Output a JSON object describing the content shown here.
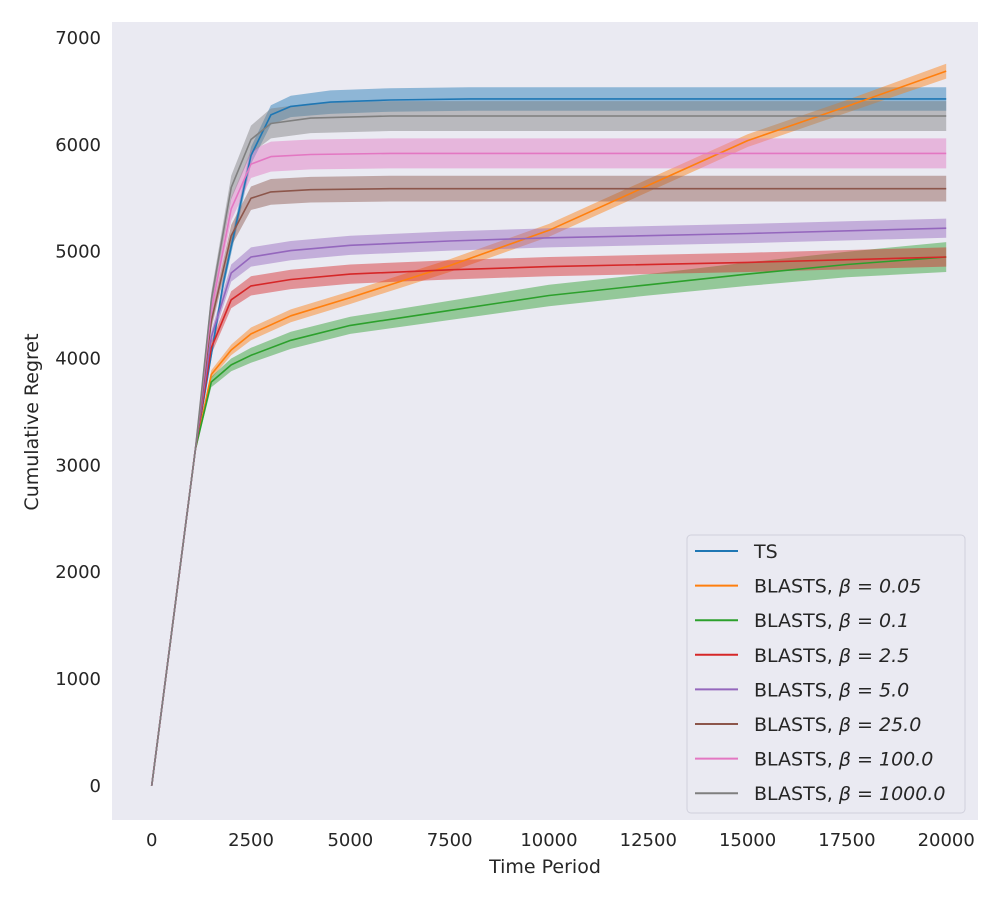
{
  "chart_data": {
    "type": "line",
    "title": "",
    "xlabel": "Time Period",
    "ylabel": "Cumulative Regret",
    "xlim": [
      -1000,
      20800
    ],
    "ylim": [
      -320,
      7150
    ],
    "xticks": [
      0,
      2500,
      5000,
      7500,
      10000,
      12500,
      15000,
      17500,
      20000
    ],
    "yticks": [
      0,
      1000,
      2000,
      3000,
      4000,
      5000,
      6000,
      7000
    ],
    "grid": false,
    "background": "#eaeaf2",
    "legend_position": "bottom-right",
    "series": [
      {
        "name": "TS",
        "label_prefix": "TS",
        "label_math": "",
        "color": "#1f77b4",
        "x": [
          0,
          1100,
          1800,
          2500,
          3000,
          3500,
          4500,
          6000,
          8000,
          12000,
          20000
        ],
        "y": [
          0,
          3150,
          4700,
          5900,
          6280,
          6360,
          6400,
          6420,
          6430,
          6430,
          6430
        ],
        "band": [
          0,
          30,
          60,
          80,
          90,
          100,
          110,
          110,
          110,
          110,
          110
        ]
      },
      {
        "name": "BLASTS, β = 0.05",
        "label_prefix": "BLASTS, ",
        "label_math": "β = 0.05",
        "color": "#ff7f0e",
        "x": [
          0,
          1100,
          1500,
          2000,
          2500,
          3500,
          5000,
          7500,
          10000,
          12500,
          15000,
          17500,
          20000
        ],
        "y": [
          0,
          3150,
          3850,
          4080,
          4230,
          4400,
          4570,
          4870,
          5200,
          5620,
          6040,
          6360,
          6690
        ],
        "band": [
          0,
          20,
          40,
          50,
          60,
          60,
          60,
          60,
          60,
          60,
          60,
          60,
          70
        ]
      },
      {
        "name": "BLASTS, β = 0.1",
        "label_prefix": "BLASTS, ",
        "label_math": "β = 0.1",
        "color": "#2ca02c",
        "x": [
          0,
          1100,
          1500,
          2000,
          2500,
          3500,
          5000,
          7500,
          10000,
          12500,
          15000,
          17500,
          20000
        ],
        "y": [
          0,
          3150,
          3780,
          3940,
          4030,
          4170,
          4310,
          4450,
          4590,
          4690,
          4790,
          4880,
          4950
        ],
        "band": [
          0,
          20,
          50,
          60,
          70,
          80,
          80,
          90,
          100,
          100,
          110,
          120,
          140
        ]
      },
      {
        "name": "BLASTS, β = 2.5",
        "label_prefix": "BLASTS, ",
        "label_math": "β = 2.5",
        "color": "#d62728",
        "x": [
          0,
          1100,
          1500,
          2000,
          2500,
          3500,
          5000,
          7500,
          10000,
          15000,
          20000
        ],
        "y": [
          0,
          3150,
          4100,
          4550,
          4680,
          4740,
          4790,
          4830,
          4860,
          4900,
          4950
        ],
        "band": [
          0,
          20,
          60,
          80,
          90,
          90,
          90,
          90,
          90,
          90,
          90
        ]
      },
      {
        "name": "BLASTS, β = 5.0",
        "label_prefix": "BLASTS, ",
        "label_math": "β = 5.0",
        "color": "#9467bd",
        "x": [
          0,
          1100,
          1500,
          2000,
          2500,
          3500,
          5000,
          7500,
          10000,
          15000,
          20000
        ],
        "y": [
          0,
          3150,
          4200,
          4800,
          4950,
          5010,
          5060,
          5100,
          5130,
          5170,
          5220
        ],
        "band": [
          0,
          20,
          60,
          80,
          90,
          90,
          90,
          90,
          90,
          90,
          90
        ]
      },
      {
        "name": "BLASTS, β = 25.0",
        "label_prefix": "BLASTS, ",
        "label_math": "β = 25.0",
        "color": "#8c564b",
        "x": [
          0,
          1100,
          1500,
          2000,
          2500,
          3000,
          4000,
          6000,
          10000,
          20000
        ],
        "y": [
          0,
          3150,
          4350,
          5150,
          5500,
          5560,
          5580,
          5590,
          5590,
          5590
        ],
        "band": [
          0,
          30,
          70,
          100,
          110,
          120,
          120,
          120,
          120,
          120
        ]
      },
      {
        "name": "BLASTS, β = 100.0",
        "label_prefix": "BLASTS, ",
        "label_math": "β = 100.0",
        "color": "#e377c2",
        "x": [
          0,
          1100,
          1500,
          2000,
          2500,
          3000,
          4000,
          6000,
          10000,
          20000
        ],
        "y": [
          0,
          3150,
          4450,
          5400,
          5820,
          5890,
          5910,
          5920,
          5920,
          5920
        ],
        "band": [
          0,
          30,
          70,
          110,
          130,
          140,
          140,
          140,
          140,
          140
        ]
      },
      {
        "name": "BLASTS, β = 1000.0",
        "label_prefix": "BLASTS, ",
        "label_math": "β = 1000.0",
        "color": "#7f7f7f",
        "x": [
          0,
          1100,
          1500,
          2000,
          2500,
          3000,
          4000,
          6000,
          10000,
          20000
        ],
        "y": [
          0,
          3150,
          4550,
          5600,
          6050,
          6200,
          6250,
          6270,
          6270,
          6270
        ],
        "band": [
          0,
          30,
          70,
          110,
          130,
          140,
          140,
          140,
          140,
          140
        ]
      }
    ]
  }
}
